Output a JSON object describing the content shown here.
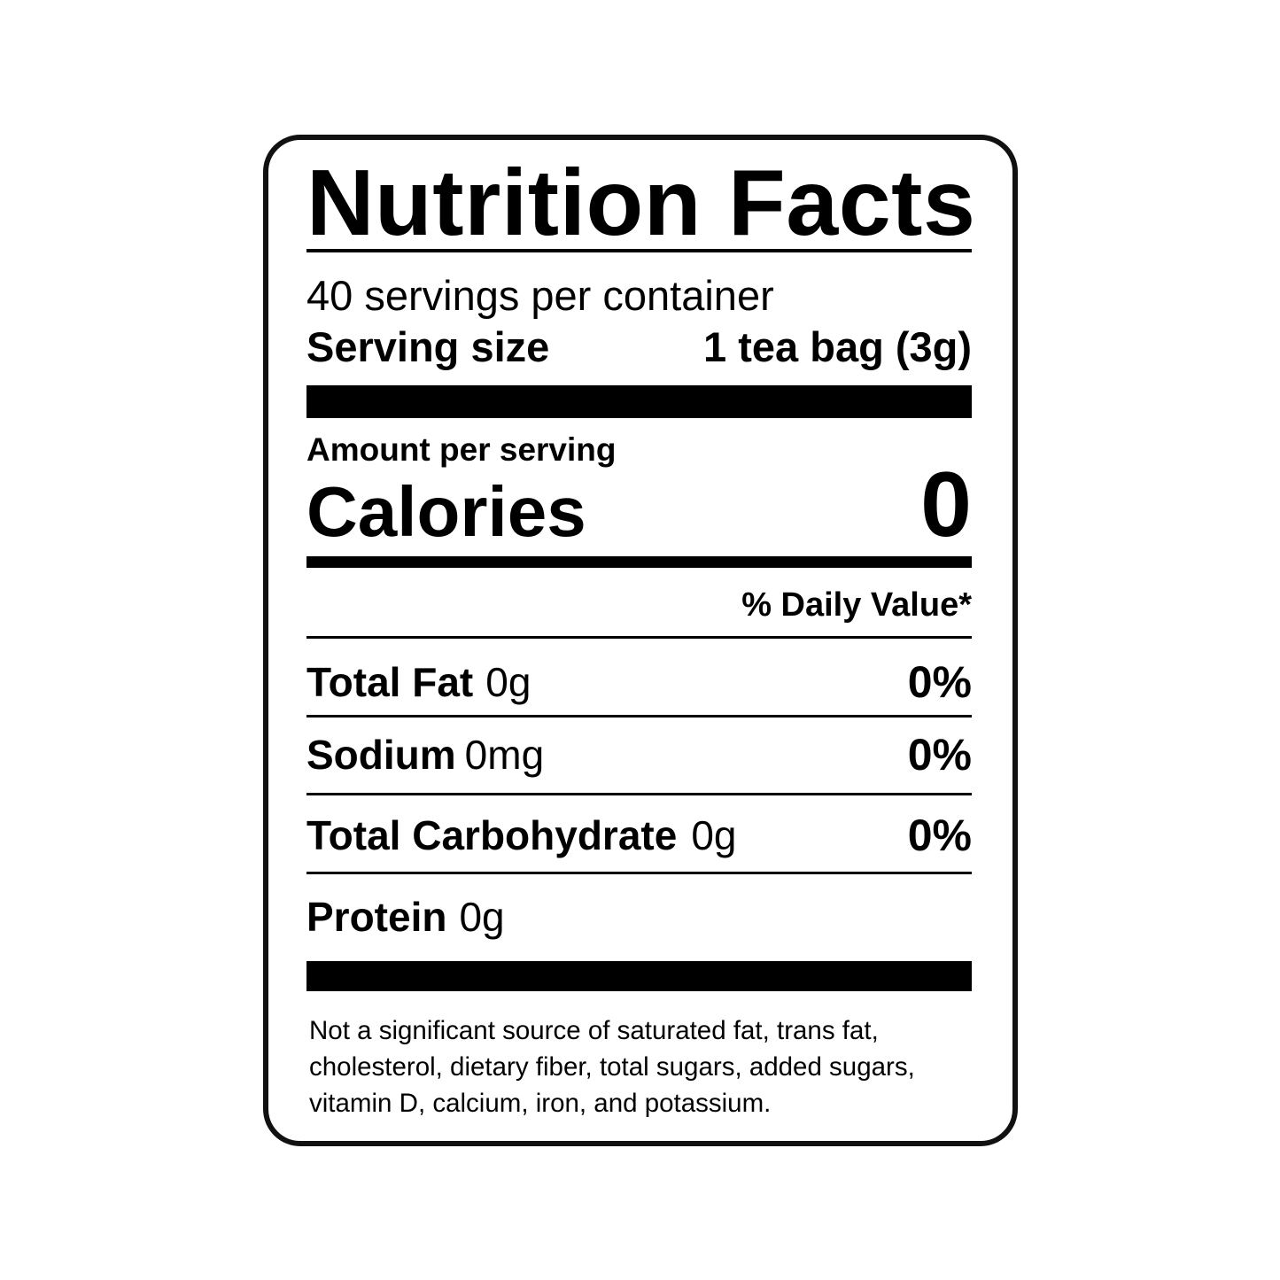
{
  "title": "Nutrition Facts",
  "servings_per_container": "40 servings per container",
  "serving_size": {
    "label": "Serving size",
    "value": "1 tea bag (3g)"
  },
  "amount_per_serving": "Amount per serving",
  "calories": {
    "label": "Calories",
    "value": "0"
  },
  "daily_value_header": "% Daily Value*",
  "nutrients": [
    {
      "name": "Total Fat",
      "amount": "0g",
      "dv": "0%"
    },
    {
      "name": "Sodium",
      "amount": "0mg",
      "dv": "0%"
    },
    {
      "name": "Total Carbohydrate",
      "amount": "0g",
      "dv": "0%"
    },
    {
      "name": "Protein",
      "amount": "0g",
      "dv": ""
    }
  ],
  "footnote": "Not a significant source of saturated fat, trans fat, cholesterol, dietary fiber, total sugars, added sugars, vitamin D, calcium, iron, and potassium."
}
